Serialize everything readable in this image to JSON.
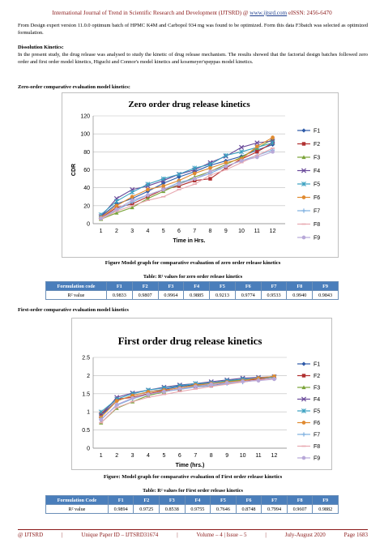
{
  "header": {
    "journal": "International Journal of Trend in Scientific Research and Development (IJTSRD)",
    "at": "@",
    "url": "www.ijtsrd.com",
    "eissn": "eISSN: 2456-6470"
  },
  "intro_text": "From Design expert version 11.0.0 optimum batch of HPMC K4M and Carbopol 934 mg was found to be optimized. Form this data F3batch was selected as optimized formulation.",
  "dissolution": {
    "heading": "Dissolution Kinetics:",
    "body": "In the present study, the drug release was analysed to study the kinetic of drug release mechanism. The results showed that the factorial design batches followed zero order and first order model kinetics, Higuchi and Connor's model kinetics and kosemeyer'speppas model kinetics."
  },
  "zero_section_heading": "Zero-order comparative evaluation model kinetics:",
  "zero_figure_caption": "Figure Model graph for comparative evaluation of zero order release kinetics",
  "zero_table": {
    "title": "Table: R² values for zero order release kinetics",
    "header": [
      "Formulation code",
      "F1",
      "F2",
      "F3",
      "F4",
      "F5",
      "F6",
      "F7",
      "F8",
      "F9"
    ],
    "row": [
      "R² value",
      "0.9833",
      "0.9807",
      "0.9964",
      "0.9885",
      "0.9213",
      "0.9774",
      "0.9533",
      "0.9940",
      "0.9843"
    ]
  },
  "first_section_heading": "First-order comparative evaluation model kinetics",
  "first_figure_caption": "Figure: Model graph for comparative evaluation of First order release kinetics",
  "first_table": {
    "title": "Table: R² values for First order release kinetics",
    "header": [
      "Formulation Code",
      "F1",
      "F2",
      "F3",
      "F4",
      "F5",
      "F6",
      "F7",
      "F8",
      "F9"
    ],
    "row": [
      "R² value",
      "0.9894",
      "0.9725",
      "0.8538",
      "0.9755",
      "0.7646",
      "0.8748",
      "0.7994",
      "0.9607",
      "0.9882"
    ]
  },
  "footer": {
    "left": "@ IJTSRD",
    "paper_id": "Unique Paper ID – IJTSRD31674",
    "volume": "Volume – 4 | Issue – 5",
    "date": "July-August 2020",
    "page": "Page 1683"
  },
  "chart_data": [
    {
      "type": "line",
      "title": "Zero order drug release kinetics",
      "xlabel": "Time in Hrs.",
      "ylabel": "CDR",
      "x": [
        1,
        2,
        3,
        4,
        5,
        6,
        7,
        8,
        9,
        10,
        11,
        12
      ],
      "xlim": [
        0.5,
        12.8
      ],
      "ylim": [
        0,
        120
      ],
      "yticks": [
        0,
        20,
        40,
        60,
        80,
        100,
        120
      ],
      "grid": true,
      "legend_position": "right",
      "series": [
        {
          "name": "F1",
          "color": "#2e5aa8",
          "marker": "diamond",
          "values": [
            8,
            22,
            28,
            36,
            45,
            52,
            58,
            65,
            70,
            75,
            82,
            88
          ]
        },
        {
          "name": "F2",
          "color": "#b03030",
          "marker": "square",
          "values": [
            6,
            18,
            22,
            30,
            38,
            42,
            48,
            50,
            62,
            72,
            80,
            90
          ]
        },
        {
          "name": "F3",
          "color": "#7aa338",
          "marker": "triangle",
          "values": [
            5,
            12,
            18,
            28,
            36,
            44,
            52,
            58,
            66,
            74,
            84,
            94
          ]
        },
        {
          "name": "F4",
          "color": "#6a4a9a",
          "marker": "x",
          "values": [
            8,
            28,
            38,
            42,
            48,
            55,
            60,
            68,
            75,
            85,
            90,
            92
          ]
        },
        {
          "name": "F5",
          "color": "#3aa0c0",
          "marker": "star",
          "values": [
            10,
            25,
            35,
            44,
            50,
            55,
            62,
            66,
            76,
            80,
            85,
            90
          ]
        },
        {
          "name": "F6",
          "color": "#e08a30",
          "marker": "circle",
          "values": [
            7,
            20,
            30,
            38,
            42,
            48,
            56,
            62,
            68,
            72,
            86,
            96
          ]
        },
        {
          "name": "F7",
          "color": "#7fb0e0",
          "marker": "plus",
          "values": [
            6,
            15,
            24,
            32,
            38,
            46,
            50,
            56,
            64,
            70,
            76,
            82
          ]
        },
        {
          "name": "F8",
          "color": "#e8a8b0",
          "marker": "dash",
          "values": [
            5,
            14,
            20,
            26,
            30,
            38,
            44,
            54,
            60,
            68,
            76,
            84
          ]
        },
        {
          "name": "F9",
          "color": "#b8a8d8",
          "marker": "circle",
          "values": [
            6,
            16,
            26,
            32,
            38,
            44,
            50,
            58,
            64,
            70,
            74,
            80
          ]
        }
      ]
    },
    {
      "type": "line",
      "title": "First order drug release kinetics",
      "xlabel": "Time (hrs.)",
      "ylabel": "",
      "x": [
        1,
        2,
        3,
        4,
        5,
        6,
        7,
        8,
        9,
        10,
        11,
        12
      ],
      "xlim": [
        0.5,
        12.8
      ],
      "ylim": [
        0,
        2.5
      ],
      "yticks": [
        0,
        0.5,
        1,
        1.5,
        2,
        2.5
      ],
      "grid": true,
      "legend_position": "right",
      "series": [
        {
          "name": "F1",
          "color": "#2e5aa8",
          "marker": "diamond",
          "values": [
            0.9,
            1.3,
            1.45,
            1.55,
            1.62,
            1.7,
            1.75,
            1.8,
            1.85,
            1.88,
            1.92,
            1.95
          ]
        },
        {
          "name": "F2",
          "color": "#b03030",
          "marker": "square",
          "values": [
            0.95,
            1.35,
            1.4,
            1.5,
            1.58,
            1.62,
            1.7,
            1.72,
            1.8,
            1.86,
            1.9,
            1.96
          ]
        },
        {
          "name": "F3",
          "color": "#7aa338",
          "marker": "triangle",
          "values": [
            0.7,
            1.1,
            1.28,
            1.45,
            1.55,
            1.64,
            1.72,
            1.78,
            1.84,
            1.88,
            1.92,
            1.98
          ]
        },
        {
          "name": "F4",
          "color": "#6a4a9a",
          "marker": "x",
          "values": [
            0.9,
            1.4,
            1.52,
            1.6,
            1.68,
            1.74,
            1.78,
            1.83,
            1.88,
            1.93,
            1.95,
            1.97
          ]
        },
        {
          "name": "F5",
          "color": "#3aa0c0",
          "marker": "star",
          "values": [
            1.0,
            1.35,
            1.5,
            1.6,
            1.66,
            1.72,
            1.78,
            1.8,
            1.86,
            1.9,
            1.93,
            1.95
          ]
        },
        {
          "name": "F6",
          "color": "#e08a30",
          "marker": "circle",
          "values": [
            0.85,
            1.3,
            1.45,
            1.55,
            1.6,
            1.66,
            1.74,
            1.78,
            1.82,
            1.86,
            1.93,
            1.98
          ]
        },
        {
          "name": "F7",
          "color": "#7fb0e0",
          "marker": "plus",
          "values": [
            0.8,
            1.18,
            1.36,
            1.48,
            1.56,
            1.62,
            1.68,
            1.72,
            1.78,
            1.82,
            1.88,
            1.91
          ]
        },
        {
          "name": "F8",
          "color": "#e8a8b0",
          "marker": "dash",
          "values": [
            0.7,
            1.12,
            1.28,
            1.4,
            1.48,
            1.56,
            1.63,
            1.7,
            1.76,
            1.82,
            1.88,
            1.92
          ]
        },
        {
          "name": "F9",
          "color": "#b8a8d8",
          "marker": "circle",
          "values": [
            0.78,
            1.2,
            1.38,
            1.48,
            1.56,
            1.64,
            1.7,
            1.76,
            1.8,
            1.84,
            1.86,
            1.9
          ]
        }
      ]
    }
  ]
}
